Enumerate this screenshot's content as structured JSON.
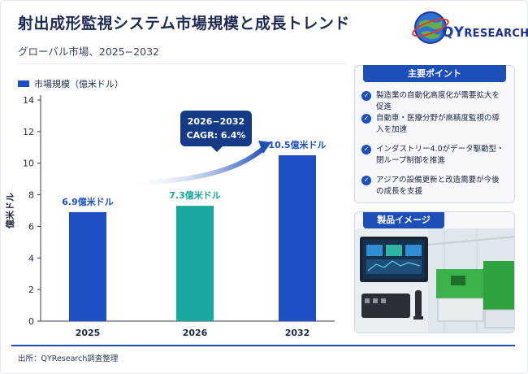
{
  "header": {
    "title": "射出成形監視システム市場規模と成長トレンド",
    "subtitle": "グローバル市場、2025−2032"
  },
  "logo": {
    "text_prefix": "QY",
    "text_rest": "RESEARCH"
  },
  "callout": {
    "line1": "2026−2032",
    "line2": "CAGR: 6.4%"
  },
  "chart_data": {
    "type": "bar",
    "categories": [
      "2025",
      "2026",
      "2032"
    ],
    "values": [
      6.9,
      7.3,
      10.5
    ],
    "data_labels": [
      "6.9億米ドル",
      "7.3億米ドル",
      "10.5億米ドル"
    ],
    "series": [
      {
        "name": "市場規模（億米ドル）",
        "values": [
          6.9,
          7.3,
          10.5
        ]
      }
    ],
    "bar_colors": [
      "#1f4fc4",
      "#17a89f",
      "#1f4fc4"
    ],
    "ylabel": "億米ドル",
    "xlabel": "",
    "ylim": [
      0,
      14
    ],
    "yticks": [
      0,
      2,
      4,
      6,
      8,
      10,
      12,
      14
    ],
    "grid": false,
    "legend": "top-left"
  },
  "key_points": {
    "title": "主要ポイント",
    "items": [
      "製造業の自動化高度化が需要拡大を促進",
      "自動車・医療分野が高精度監視の導入を加速",
      "インダストリー4.0がデータ駆動型・閉ループ制御を推進",
      "アジアの設備更新と改造需要が今後の成長を支援"
    ]
  },
  "product": {
    "title": "製品イメージ"
  },
  "footer": {
    "source": "出所：QYResearch調査整理"
  },
  "colors": {
    "primary": "#1d4fb8",
    "teal": "#17a89f",
    "navy": "#153a86"
  }
}
